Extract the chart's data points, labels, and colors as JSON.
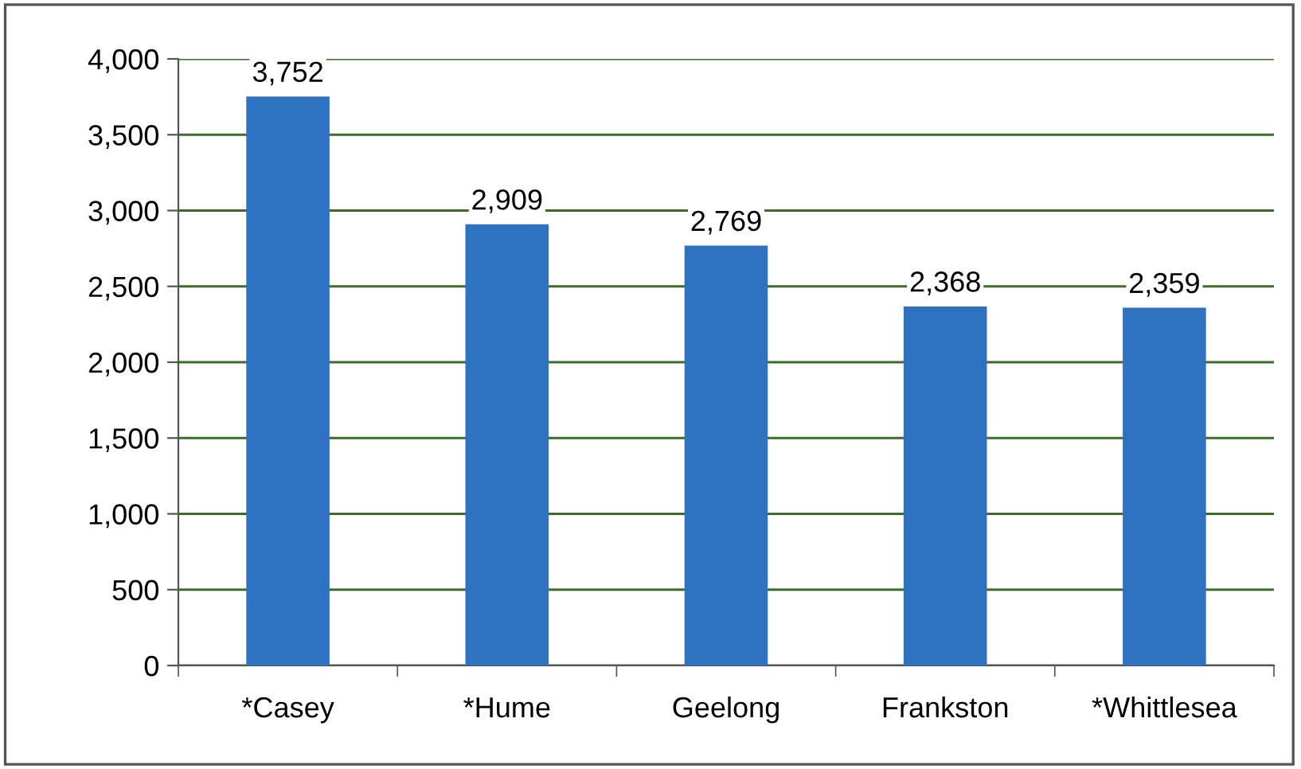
{
  "chart_data": {
    "type": "bar",
    "categories": [
      "*Casey",
      "*Hume",
      "Geelong",
      "Frankston",
      "*Whittlesea"
    ],
    "values": [
      3752,
      2909,
      2769,
      2368,
      2359
    ],
    "color": "#2f72c2",
    "ylim": [
      0,
      4000
    ],
    "yticks": [
      {
        "value": 0,
        "label": "0"
      },
      {
        "value": 500,
        "label": "500"
      },
      {
        "value": 1000,
        "label": "1,000"
      },
      {
        "value": 1500,
        "label": "1,500"
      },
      {
        "value": 2000,
        "label": "2,000"
      },
      {
        "value": 2500,
        "label": "2,500"
      },
      {
        "value": 3000,
        "label": "3,000"
      },
      {
        "value": 3500,
        "label": "3,500"
      },
      {
        "value": 4000,
        "label": "4,000"
      }
    ],
    "grid": "y",
    "value_labels": [
      "3,752",
      "2,909",
      "2,769",
      "2,368",
      "2,359"
    ]
  }
}
